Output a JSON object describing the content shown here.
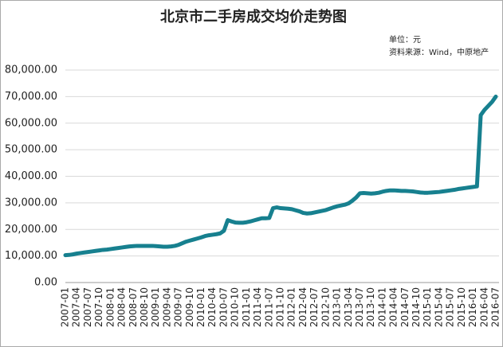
{
  "chart_data": {
    "type": "line",
    "title": "北京市二手房成交均价走势图",
    "annotations": [
      "单位：元",
      "资料来源：Wind，中原地产"
    ],
    "categories": [
      "2007-01",
      null,
      null,
      "2007-04",
      null,
      null,
      "2007-07",
      null,
      null,
      "2007-10",
      null,
      null,
      "2008-01",
      null,
      null,
      "2008-04",
      null,
      null,
      "2008-07",
      null,
      null,
      "2008-10",
      null,
      null,
      "2009-01",
      null,
      null,
      "2009-04",
      null,
      null,
      "2009-07",
      null,
      null,
      "2009-10",
      null,
      null,
      "2010-01",
      null,
      null,
      "2010-04",
      null,
      null,
      "2010-07",
      null,
      null,
      "2010-10",
      null,
      null,
      "2011-01",
      null,
      null,
      "2011-04",
      null,
      null,
      "2011-07",
      null,
      null,
      "2011-10",
      null,
      null,
      "2012-01",
      null,
      null,
      "2012-04",
      null,
      null,
      "2012-07",
      null,
      null,
      "2012-10",
      null,
      null,
      "2013-01",
      null,
      null,
      "2013-04",
      null,
      null,
      "2013-07",
      null,
      null,
      "2013-10",
      null,
      null,
      "2014-01",
      null,
      null,
      "2014-04",
      null,
      null,
      "2014-07",
      null,
      null,
      "2014-10",
      null,
      null,
      "2015-01",
      null,
      null,
      "2015-04",
      null,
      null,
      "2015-07",
      null,
      null,
      "2015-10",
      null,
      null,
      "2016-01",
      null,
      null,
      "2016-04",
      null,
      null,
      "2016-07"
    ],
    "series": [
      {
        "color": "#17808f",
        "values": [
          10300,
          10400,
          10600,
          10900,
          11100,
          11300,
          11500,
          11700,
          11900,
          12100,
          12300,
          12400,
          12600,
          12800,
          13000,
          13200,
          13400,
          13600,
          13700,
          13800,
          13800,
          13800,
          13800,
          13800,
          13700,
          13600,
          13500,
          13500,
          13600,
          13800,
          14200,
          14800,
          15400,
          15800,
          16200,
          16600,
          17000,
          17500,
          17800,
          18000,
          18200,
          18500,
          19500,
          23500,
          23000,
          22600,
          22500,
          22500,
          22700,
          23000,
          23400,
          23800,
          24200,
          24200,
          24300,
          28000,
          28300,
          28000,
          27900,
          27800,
          27600,
          27200,
          26800,
          26200,
          26000,
          26100,
          26400,
          26700,
          27000,
          27300,
          27800,
          28300,
          28700,
          29000,
          29300,
          29800,
          30800,
          32000,
          33600,
          33700,
          33600,
          33500,
          33600,
          33800,
          34200,
          34500,
          34700,
          34700,
          34600,
          34500,
          34500,
          34400,
          34300,
          34100,
          33900,
          33800,
          33800,
          33900,
          34000,
          34100,
          34300,
          34500,
          34700,
          34900,
          35200,
          35400,
          35600,
          35800,
          36000,
          36200,
          63000,
          65000,
          66500,
          68000,
          70000
        ]
      }
    ],
    "ylim": [
      0,
      80000
    ],
    "yticks": [
      {
        "value": 0,
        "label": "0.00"
      },
      {
        "value": 10000,
        "label": "10,000.00"
      },
      {
        "value": 20000,
        "label": "20,000.00"
      },
      {
        "value": 30000,
        "label": "30,000.00"
      },
      {
        "value": 40000,
        "label": "40,000.00"
      },
      {
        "value": 50000,
        "label": "50,000.00"
      },
      {
        "value": 60000,
        "label": "60,000.00"
      },
      {
        "value": 70000,
        "label": "70,000.00"
      },
      {
        "value": 80000,
        "label": "80,000.00"
      }
    ],
    "grid": true
  }
}
